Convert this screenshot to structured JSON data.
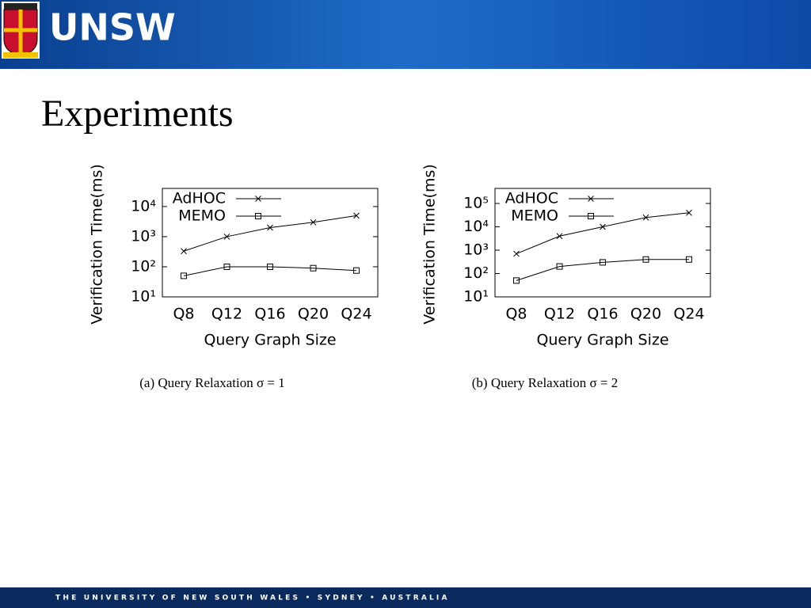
{
  "header": {
    "logo_text": "UNSW"
  },
  "title": "Experiments",
  "footer": "THE UNIVERSITY OF NEW SOUTH WALES • SYDNEY • AUSTRALIA",
  "chart_data": [
    {
      "type": "line",
      "log_scale": true,
      "caption": "(a)  Query Relaxation σ = 1",
      "x_label": "Query Graph Size",
      "y_label": "Verification Time(ms)",
      "categories": [
        "Q8",
        "Q12",
        "Q16",
        "Q20",
        "Q24"
      ],
      "ylim": [
        10,
        40000
      ],
      "yticks": [
        {
          "value": 10,
          "label": "10¹"
        },
        {
          "value": 100,
          "label": "10²"
        },
        {
          "value": 1000,
          "label": "10³"
        },
        {
          "value": 10000,
          "label": "10⁴"
        }
      ],
      "legend": "top-left",
      "series": [
        {
          "name": "AdHOC",
          "color": "#000000",
          "marker": "x",
          "values": [
            330,
            1000,
            2000,
            3000,
            5000
          ]
        },
        {
          "name": "MEMO",
          "color": "#000000",
          "marker": "square",
          "values": [
            50,
            100,
            100,
            90,
            75
          ]
        }
      ]
    },
    {
      "type": "line",
      "log_scale": true,
      "caption": "(b)  Query Relaxation σ = 2",
      "x_label": "Query Graph Size",
      "y_label": "Verification Time(ms)",
      "categories": [
        "Q8",
        "Q12",
        "Q16",
        "Q20",
        "Q24"
      ],
      "ylim": [
        10,
        440000
      ],
      "yticks": [
        {
          "value": 10,
          "label": "10¹"
        },
        {
          "value": 100,
          "label": "10²"
        },
        {
          "value": 1000,
          "label": "10³"
        },
        {
          "value": 10000,
          "label": "10⁴"
        },
        {
          "value": 100000,
          "label": "10⁵"
        }
      ],
      "legend": "top-left",
      "series": [
        {
          "name": "AdHOC",
          "color": "#000000",
          "marker": "x",
          "values": [
            700,
            4000,
            10000,
            25000,
            40000
          ]
        },
        {
          "name": "MEMO",
          "color": "#000000",
          "marker": "square",
          "values": [
            50,
            200,
            300,
            400,
            400
          ]
        }
      ]
    }
  ]
}
